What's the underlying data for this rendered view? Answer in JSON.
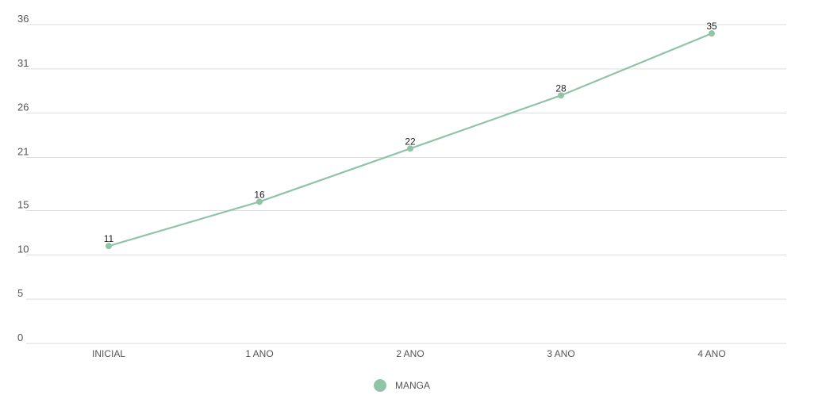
{
  "chart_data": {
    "type": "line",
    "categories": [
      "INICIAL",
      "1 ANO",
      "2 ANO",
      "3 ANO",
      "4 ANO"
    ],
    "series": [
      {
        "name": "MANGA",
        "values": [
          11,
          16,
          22,
          28,
          35
        ],
        "data_labels": [
          "11",
          "16",
          "22",
          "28",
          "35"
        ],
        "color": "#8fc4a6"
      }
    ],
    "y_ticks": [
      0,
      5,
      10,
      15,
      21,
      26,
      31,
      36
    ],
    "ylim": [
      0,
      36
    ],
    "grid": true,
    "legend_position": "bottom-center"
  }
}
